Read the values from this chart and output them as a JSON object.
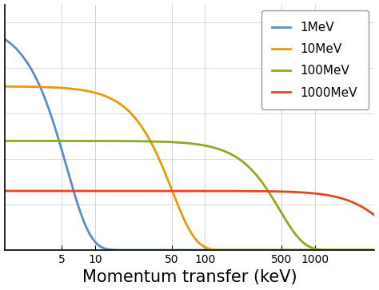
{
  "xlabel": "Momentum transfer (keV)",
  "xlim": [
    1.5,
    3500
  ],
  "ylim": [
    0,
    1.08
  ],
  "xticks": [
    5,
    10,
    50,
    100,
    500,
    1000
  ],
  "xtick_labels": [
    "5",
    "10",
    "50",
    "100",
    "500",
    "1000"
  ],
  "series": [
    {
      "label": "1MeV",
      "color": "#5b8ec5",
      "q_scale": 5.5,
      "amplitude": 1.0
    },
    {
      "label": "10MeV",
      "color": "#e89a0a",
      "q_scale": 50.0,
      "amplitude": 0.72
    },
    {
      "label": "100MeV",
      "color": "#8daa22",
      "q_scale": 480.0,
      "amplitude": 0.48
    },
    {
      "label": "1000MeV",
      "color": "#e04820",
      "q_scale": 4800.0,
      "amplitude": 0.26
    }
  ],
  "legend_fontsize": 11,
  "xlabel_fontsize": 15,
  "background_color": "#ffffff",
  "grid_color": "#cccccc",
  "linewidth": 2.0,
  "n_exp": 2.0
}
